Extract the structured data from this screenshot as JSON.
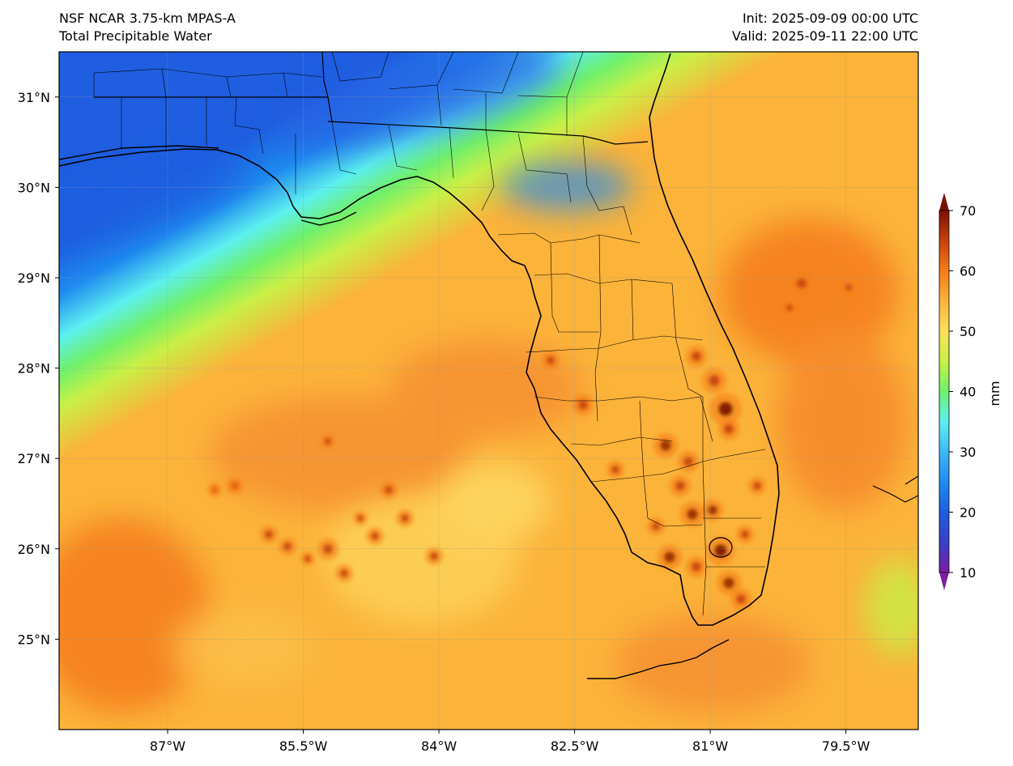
{
  "header": {
    "model": "NSF NCAR 3.75-km MPAS-A",
    "field": "Total Precipitable Water",
    "init": "Init: 2025-09-09 00:00 UTC",
    "valid": "Valid: 2025-09-11 22:00 UTC"
  },
  "map": {
    "lon_range": [
      -88.2,
      -78.7
    ],
    "lat_range": [
      24.0,
      31.5
    ],
    "lon_ticks": [
      {
        "value": -87.0,
        "label": "87°W"
      },
      {
        "value": -85.5,
        "label": "85.5°W"
      },
      {
        "value": -84.0,
        "label": "84°W"
      },
      {
        "value": -82.5,
        "label": "82.5°W"
      },
      {
        "value": -81.0,
        "label": "81°W"
      },
      {
        "value": -79.5,
        "label": "79.5°W"
      }
    ],
    "lat_ticks": [
      {
        "value": 31,
        "label": "31°N"
      },
      {
        "value": 30,
        "label": "30°N"
      },
      {
        "value": 29,
        "label": "29°N"
      },
      {
        "value": 28,
        "label": "28°N"
      },
      {
        "value": 27,
        "label": "27°N"
      },
      {
        "value": 26,
        "label": "26°N"
      },
      {
        "value": 25,
        "label": "25°N"
      }
    ]
  },
  "colorbar": {
    "unit": "mm",
    "min": 10,
    "max": 70,
    "ticks": [
      {
        "value": 70,
        "label": "70"
      },
      {
        "value": 60,
        "label": "60"
      },
      {
        "value": 50,
        "label": "50"
      },
      {
        "value": 40,
        "label": "40"
      },
      {
        "value": 30,
        "label": "30"
      },
      {
        "value": 20,
        "label": "20"
      },
      {
        "value": 10,
        "label": "10"
      }
    ],
    "stops": [
      {
        "value": 10,
        "color": "#7a1fa2"
      },
      {
        "value": 15,
        "color": "#3a3fc7"
      },
      {
        "value": 20,
        "color": "#1f5ee0"
      },
      {
        "value": 25,
        "color": "#1f8bf0"
      },
      {
        "value": 30,
        "color": "#3fb8f5"
      },
      {
        "value": 35,
        "color": "#5cf0f0"
      },
      {
        "value": 40,
        "color": "#6ff06c"
      },
      {
        "value": 45,
        "color": "#c8f046"
      },
      {
        "value": 50,
        "color": "#fde15a"
      },
      {
        "value": 55,
        "color": "#fbb33a"
      },
      {
        "value": 60,
        "color": "#f57c1a"
      },
      {
        "value": 65,
        "color": "#c8420a"
      },
      {
        "value": 70,
        "color": "#7a0f03"
      }
    ]
  }
}
